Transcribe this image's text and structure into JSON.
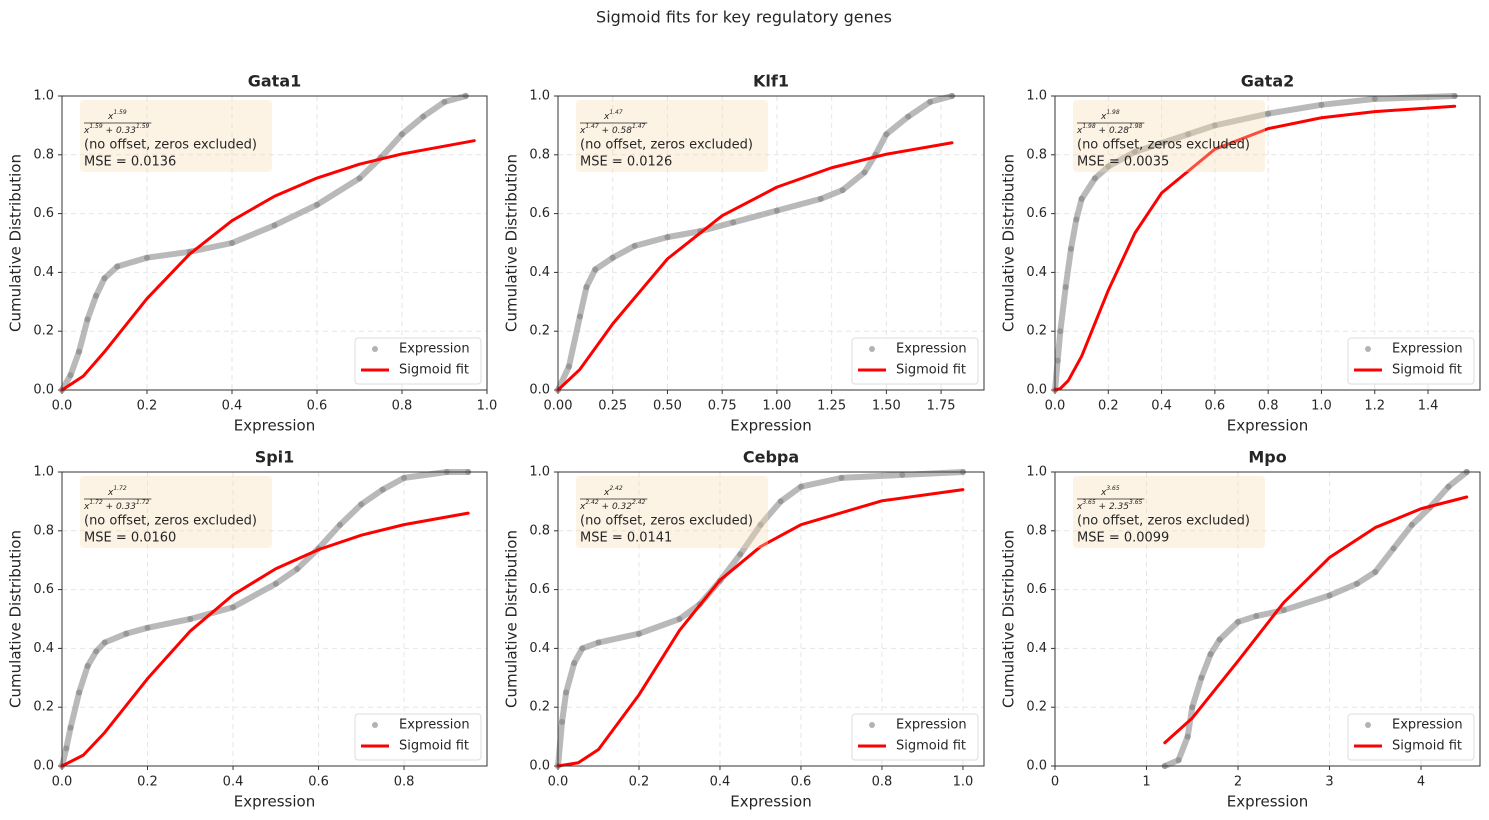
{
  "title": "Sigmoid fits for key regulatory genes",
  "chart_data": [
    {
      "type": "line",
      "title": "Gata1",
      "x_label": "Expression",
      "y_label": "Cumulative Distribution",
      "xlim": [
        0,
        1.0
      ],
      "xticks": [
        {
          "value": 0,
          "label": "0.0"
        },
        0.2,
        0.4,
        0.6,
        0.8,
        {
          "value": 1,
          "label": "1.0"
        }
      ],
      "ylim": [
        0,
        1.0
      ],
      "yticks": [
        {
          "value": 0,
          "label": "0.0"
        },
        0.2,
        0.4,
        0.6,
        0.8,
        {
          "value": 1,
          "label": "1.0"
        }
      ],
      "grid": true,
      "legend": "lower right",
      "annotation": {
        "numerator": [
          "x",
          "1.59"
        ],
        "denominator": [
          "x",
          "1.59",
          " + 0.33",
          "1.59"
        ],
        "note": "(no offset, zeros excluded)",
        "mse": "MSE = 0.0136"
      },
      "series": [
        {
          "name": "Expression",
          "kind": "scatter",
          "color": "#808080",
          "x": [
            0,
            0.02,
            0.04,
            0.06,
            0.08,
            0.1,
            0.13,
            0.2,
            0.3,
            0.4,
            0.5,
            0.6,
            0.7,
            0.75,
            0.8,
            0.85,
            0.9,
            0.95
          ],
          "values": [
            0,
            0.05,
            0.13,
            0.24,
            0.32,
            0.38,
            0.42,
            0.45,
            0.47,
            0.5,
            0.56,
            0.63,
            0.72,
            0.79,
            0.87,
            0.93,
            0.98,
            1.0
          ]
        },
        {
          "name": "Sigmoid fit",
          "kind": "line",
          "color": "#ff0000",
          "x": [
            0,
            0.05,
            0.1,
            0.2,
            0.3,
            0.4,
            0.5,
            0.6,
            0.7,
            0.8,
            0.97
          ],
          "values": [
            0,
            0.047,
            0.13,
            0.311,
            0.462,
            0.576,
            0.659,
            0.721,
            0.768,
            0.803,
            0.848
          ]
        }
      ]
    },
    {
      "type": "line",
      "title": "Klf1",
      "x_label": "Expression",
      "y_label": "Cumulative Distribution",
      "xlim": [
        0,
        1.946
      ],
      "xticks": [
        {
          "value": 0,
          "label": "0.00"
        },
        0.25,
        {
          "value": 0.5,
          "label": "0.50"
        },
        0.75,
        {
          "value": 1,
          "label": "1.00"
        },
        1.25,
        {
          "value": 1.5,
          "label": "1.50"
        },
        1.75
      ],
      "ylim": [
        0,
        1.0
      ],
      "yticks": [
        {
          "value": 0,
          "label": "0.0"
        },
        0.2,
        0.4,
        0.6,
        0.8,
        {
          "value": 1,
          "label": "1.0"
        }
      ],
      "grid": true,
      "legend": "lower right",
      "annotation": {
        "numerator": [
          "x",
          "1.47"
        ],
        "denominator": [
          "x",
          "1.47",
          " + 0.58",
          "1.47"
        ],
        "note": "(no offset, zeros excluded)",
        "mse": "MSE = 0.0126"
      },
      "series": [
        {
          "name": "Expression",
          "kind": "scatter",
          "color": "#808080",
          "x": [
            0,
            0.05,
            0.1,
            0.13,
            0.17,
            0.25,
            0.35,
            0.5,
            0.65,
            0.8,
            1.0,
            1.2,
            1.3,
            1.4,
            1.45,
            1.5,
            1.6,
            1.7,
            1.8
          ],
          "values": [
            0,
            0.08,
            0.25,
            0.35,
            0.41,
            0.45,
            0.49,
            0.52,
            0.54,
            0.57,
            0.61,
            0.65,
            0.68,
            0.74,
            0.8,
            0.87,
            0.93,
            0.98,
            1.0
          ]
        },
        {
          "name": "Sigmoid fit",
          "kind": "line",
          "color": "#ff0000",
          "x": [
            0,
            0.1,
            0.25,
            0.5,
            0.75,
            1.0,
            1.25,
            1.5,
            1.8
          ],
          "values": [
            0,
            0.07,
            0.225,
            0.446,
            0.593,
            0.69,
            0.756,
            0.802,
            0.841
          ]
        }
      ]
    },
    {
      "type": "line",
      "title": "Gata2",
      "x_label": "Expression",
      "y_label": "Cumulative Distribution",
      "xlim": [
        0,
        1.595
      ],
      "xticks": [
        {
          "value": 0,
          "label": "0.0"
        },
        0.2,
        0.4,
        0.6,
        0.8,
        {
          "value": 1,
          "label": "1.0"
        },
        1.2,
        1.4
      ],
      "ylim": [
        0,
        1.0
      ],
      "yticks": [
        {
          "value": 0,
          "label": "0.0"
        },
        0.2,
        0.4,
        0.6,
        0.8,
        {
          "value": 1,
          "label": "1.0"
        }
      ],
      "grid": true,
      "legend": "lower right",
      "annotation": {
        "numerator": [
          "x",
          "1.98"
        ],
        "denominator": [
          "x",
          "1.98",
          " + 0.28",
          "1.98"
        ],
        "note": "(no offset, zeros excluded)",
        "mse": "MSE = 0.0035"
      },
      "series": [
        {
          "name": "Expression",
          "kind": "scatter",
          "color": "#808080",
          "x": [
            0,
            0.01,
            0.02,
            0.04,
            0.06,
            0.08,
            0.1,
            0.15,
            0.2,
            0.3,
            0.4,
            0.5,
            0.6,
            0.8,
            1.0,
            1.2,
            1.5
          ],
          "values": [
            0,
            0.1,
            0.2,
            0.35,
            0.48,
            0.58,
            0.65,
            0.72,
            0.76,
            0.81,
            0.84,
            0.87,
            0.9,
            0.94,
            0.97,
            0.99,
            1.0
          ]
        },
        {
          "name": "Sigmoid fit",
          "kind": "line",
          "color": "#ff0000",
          "x": [
            0,
            0.02,
            0.05,
            0.1,
            0.2,
            0.3,
            0.4,
            0.6,
            0.8,
            1.0,
            1.2,
            1.5
          ],
          "values": [
            0,
            0.005,
            0.032,
            0.115,
            0.339,
            0.534,
            0.67,
            0.819,
            0.889,
            0.926,
            0.947,
            0.965
          ]
        }
      ]
    },
    {
      "type": "line",
      "title": "Spi1",
      "x_label": "Expression",
      "y_label": "Cumulative Distribution",
      "xlim": [
        0,
        0.994
      ],
      "xticks": [
        {
          "value": 0,
          "label": "0.0"
        },
        0.2,
        0.4,
        0.6,
        0.8
      ],
      "ylim": [
        0,
        1.0
      ],
      "yticks": [
        {
          "value": 0,
          "label": "0.0"
        },
        0.2,
        0.4,
        0.6,
        0.8,
        {
          "value": 1,
          "label": "1.0"
        }
      ],
      "grid": true,
      "legend": "lower right",
      "annotation": {
        "numerator": [
          "x",
          "1.72"
        ],
        "denominator": [
          "x",
          "1.72",
          " + 0.33",
          "1.72"
        ],
        "note": "(no offset, zeros excluded)",
        "mse": "MSE = 0.0160"
      },
      "series": [
        {
          "name": "Expression",
          "kind": "scatter",
          "color": "#808080",
          "x": [
            0,
            0.01,
            0.02,
            0.04,
            0.06,
            0.08,
            0.1,
            0.15,
            0.2,
            0.3,
            0.4,
            0.5,
            0.55,
            0.6,
            0.65,
            0.7,
            0.75,
            0.8,
            0.9,
            0.95
          ],
          "values": [
            0,
            0.06,
            0.13,
            0.25,
            0.34,
            0.39,
            0.42,
            0.45,
            0.47,
            0.5,
            0.54,
            0.62,
            0.67,
            0.74,
            0.82,
            0.89,
            0.94,
            0.98,
            1.0,
            1.0
          ]
        },
        {
          "name": "Sigmoid fit",
          "kind": "line",
          "color": "#ff0000",
          "x": [
            0,
            0.05,
            0.1,
            0.2,
            0.3,
            0.4,
            0.5,
            0.6,
            0.7,
            0.8,
            0.95
          ],
          "values": [
            0,
            0.037,
            0.114,
            0.297,
            0.459,
            0.582,
            0.671,
            0.736,
            0.785,
            0.821,
            0.86
          ]
        }
      ]
    },
    {
      "type": "line",
      "title": "Cebpa",
      "x_label": "Expression",
      "y_label": "Cumulative Distribution",
      "xlim": [
        0,
        1.052
      ],
      "xticks": [
        {
          "value": 0,
          "label": "0.0"
        },
        0.2,
        0.4,
        0.6,
        0.8,
        {
          "value": 1,
          "label": "1.0"
        }
      ],
      "ylim": [
        0,
        1.0
      ],
      "yticks": [
        {
          "value": 0,
          "label": "0.0"
        },
        0.2,
        0.4,
        0.6,
        0.8,
        {
          "value": 1,
          "label": "1.0"
        }
      ],
      "grid": true,
      "legend": "lower right",
      "annotation": {
        "numerator": [
          "x",
          "2.42"
        ],
        "denominator": [
          "x",
          "2.42",
          " + 0.32",
          "2.42"
        ],
        "note": "(no offset, zeros excluded)",
        "mse": "MSE = 0.0141"
      },
      "series": [
        {
          "name": "Expression",
          "kind": "scatter",
          "color": "#808080",
          "x": [
            0,
            0.01,
            0.02,
            0.04,
            0.06,
            0.1,
            0.2,
            0.3,
            0.35,
            0.4,
            0.45,
            0.5,
            0.55,
            0.6,
            0.7,
            0.85,
            1.0
          ],
          "values": [
            0,
            0.15,
            0.25,
            0.35,
            0.4,
            0.42,
            0.45,
            0.5,
            0.55,
            0.63,
            0.72,
            0.82,
            0.9,
            0.95,
            0.98,
            0.99,
            1.0
          ]
        },
        {
          "name": "Sigmoid fit",
          "kind": "line",
          "color": "#ff0000",
          "x": [
            0,
            0.05,
            0.1,
            0.2,
            0.3,
            0.4,
            0.5,
            0.6,
            0.8,
            1.0
          ],
          "values": [
            0,
            0.011,
            0.056,
            0.242,
            0.461,
            0.632,
            0.746,
            0.821,
            0.902,
            0.94
          ]
        }
      ]
    },
    {
      "type": "line",
      "title": "Mpo",
      "x_label": "Expression",
      "y_label": "Cumulative Distribution",
      "xlim": [
        0,
        4.645
      ],
      "xticks": [
        0,
        1,
        2,
        3,
        4
      ],
      "ylim": [
        0,
        1.0
      ],
      "yticks": [
        {
          "value": 0,
          "label": "0.0"
        },
        0.2,
        0.4,
        0.6,
        0.8,
        {
          "value": 1,
          "label": "1.0"
        }
      ],
      "grid": true,
      "legend": "lower right",
      "annotation": {
        "numerator": [
          "x",
          "3.65"
        ],
        "denominator": [
          "x",
          "3.65",
          " + 2.35",
          "3.65"
        ],
        "note": "(no offset, zeros excluded)",
        "mse": "MSE = 0.0099"
      },
      "series": [
        {
          "name": "Expression",
          "kind": "scatter",
          "color": "#808080",
          "x": [
            1.2,
            1.35,
            1.45,
            1.5,
            1.6,
            1.7,
            1.8,
            2.0,
            2.2,
            2.5,
            3.0,
            3.3,
            3.5,
            3.7,
            3.9,
            4.1,
            4.3,
            4.5
          ],
          "values": [
            0,
            0.02,
            0.1,
            0.2,
            0.3,
            0.38,
            0.43,
            0.49,
            0.51,
            0.53,
            0.58,
            0.62,
            0.66,
            0.74,
            0.82,
            0.88,
            0.95,
            1.0
          ]
        },
        {
          "name": "Sigmoid fit",
          "kind": "line",
          "color": "#ff0000",
          "x": [
            1.2,
            1.5,
            2.0,
            2.5,
            3.0,
            3.5,
            4.0,
            4.5
          ],
          "values": [
            0.079,
            0.163,
            0.357,
            0.556,
            0.709,
            0.811,
            0.875,
            0.915
          ]
        }
      ]
    }
  ]
}
